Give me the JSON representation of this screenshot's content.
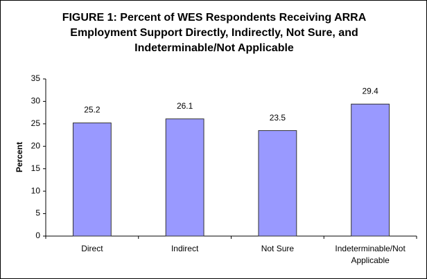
{
  "chart_data": {
    "type": "bar",
    "title": [
      "FIGURE 1: Percent of WES Respondents Receiving ARRA",
      "Employment Support Directly, Indirectly, Not Sure, and",
      "Indeterminable/Not Applicable"
    ],
    "y_label": "Percent",
    "categories": [
      "Direct",
      "Indirect",
      "Not Sure",
      "Indeterminable/Not Applicable"
    ],
    "values": [
      25.2,
      26.1,
      23.5,
      29.4
    ],
    "color": "#9999ff",
    "ylim": [
      0,
      35
    ],
    "yticks": [
      0,
      5,
      10,
      15,
      20,
      25,
      30,
      35
    ],
    "grid": false
  }
}
